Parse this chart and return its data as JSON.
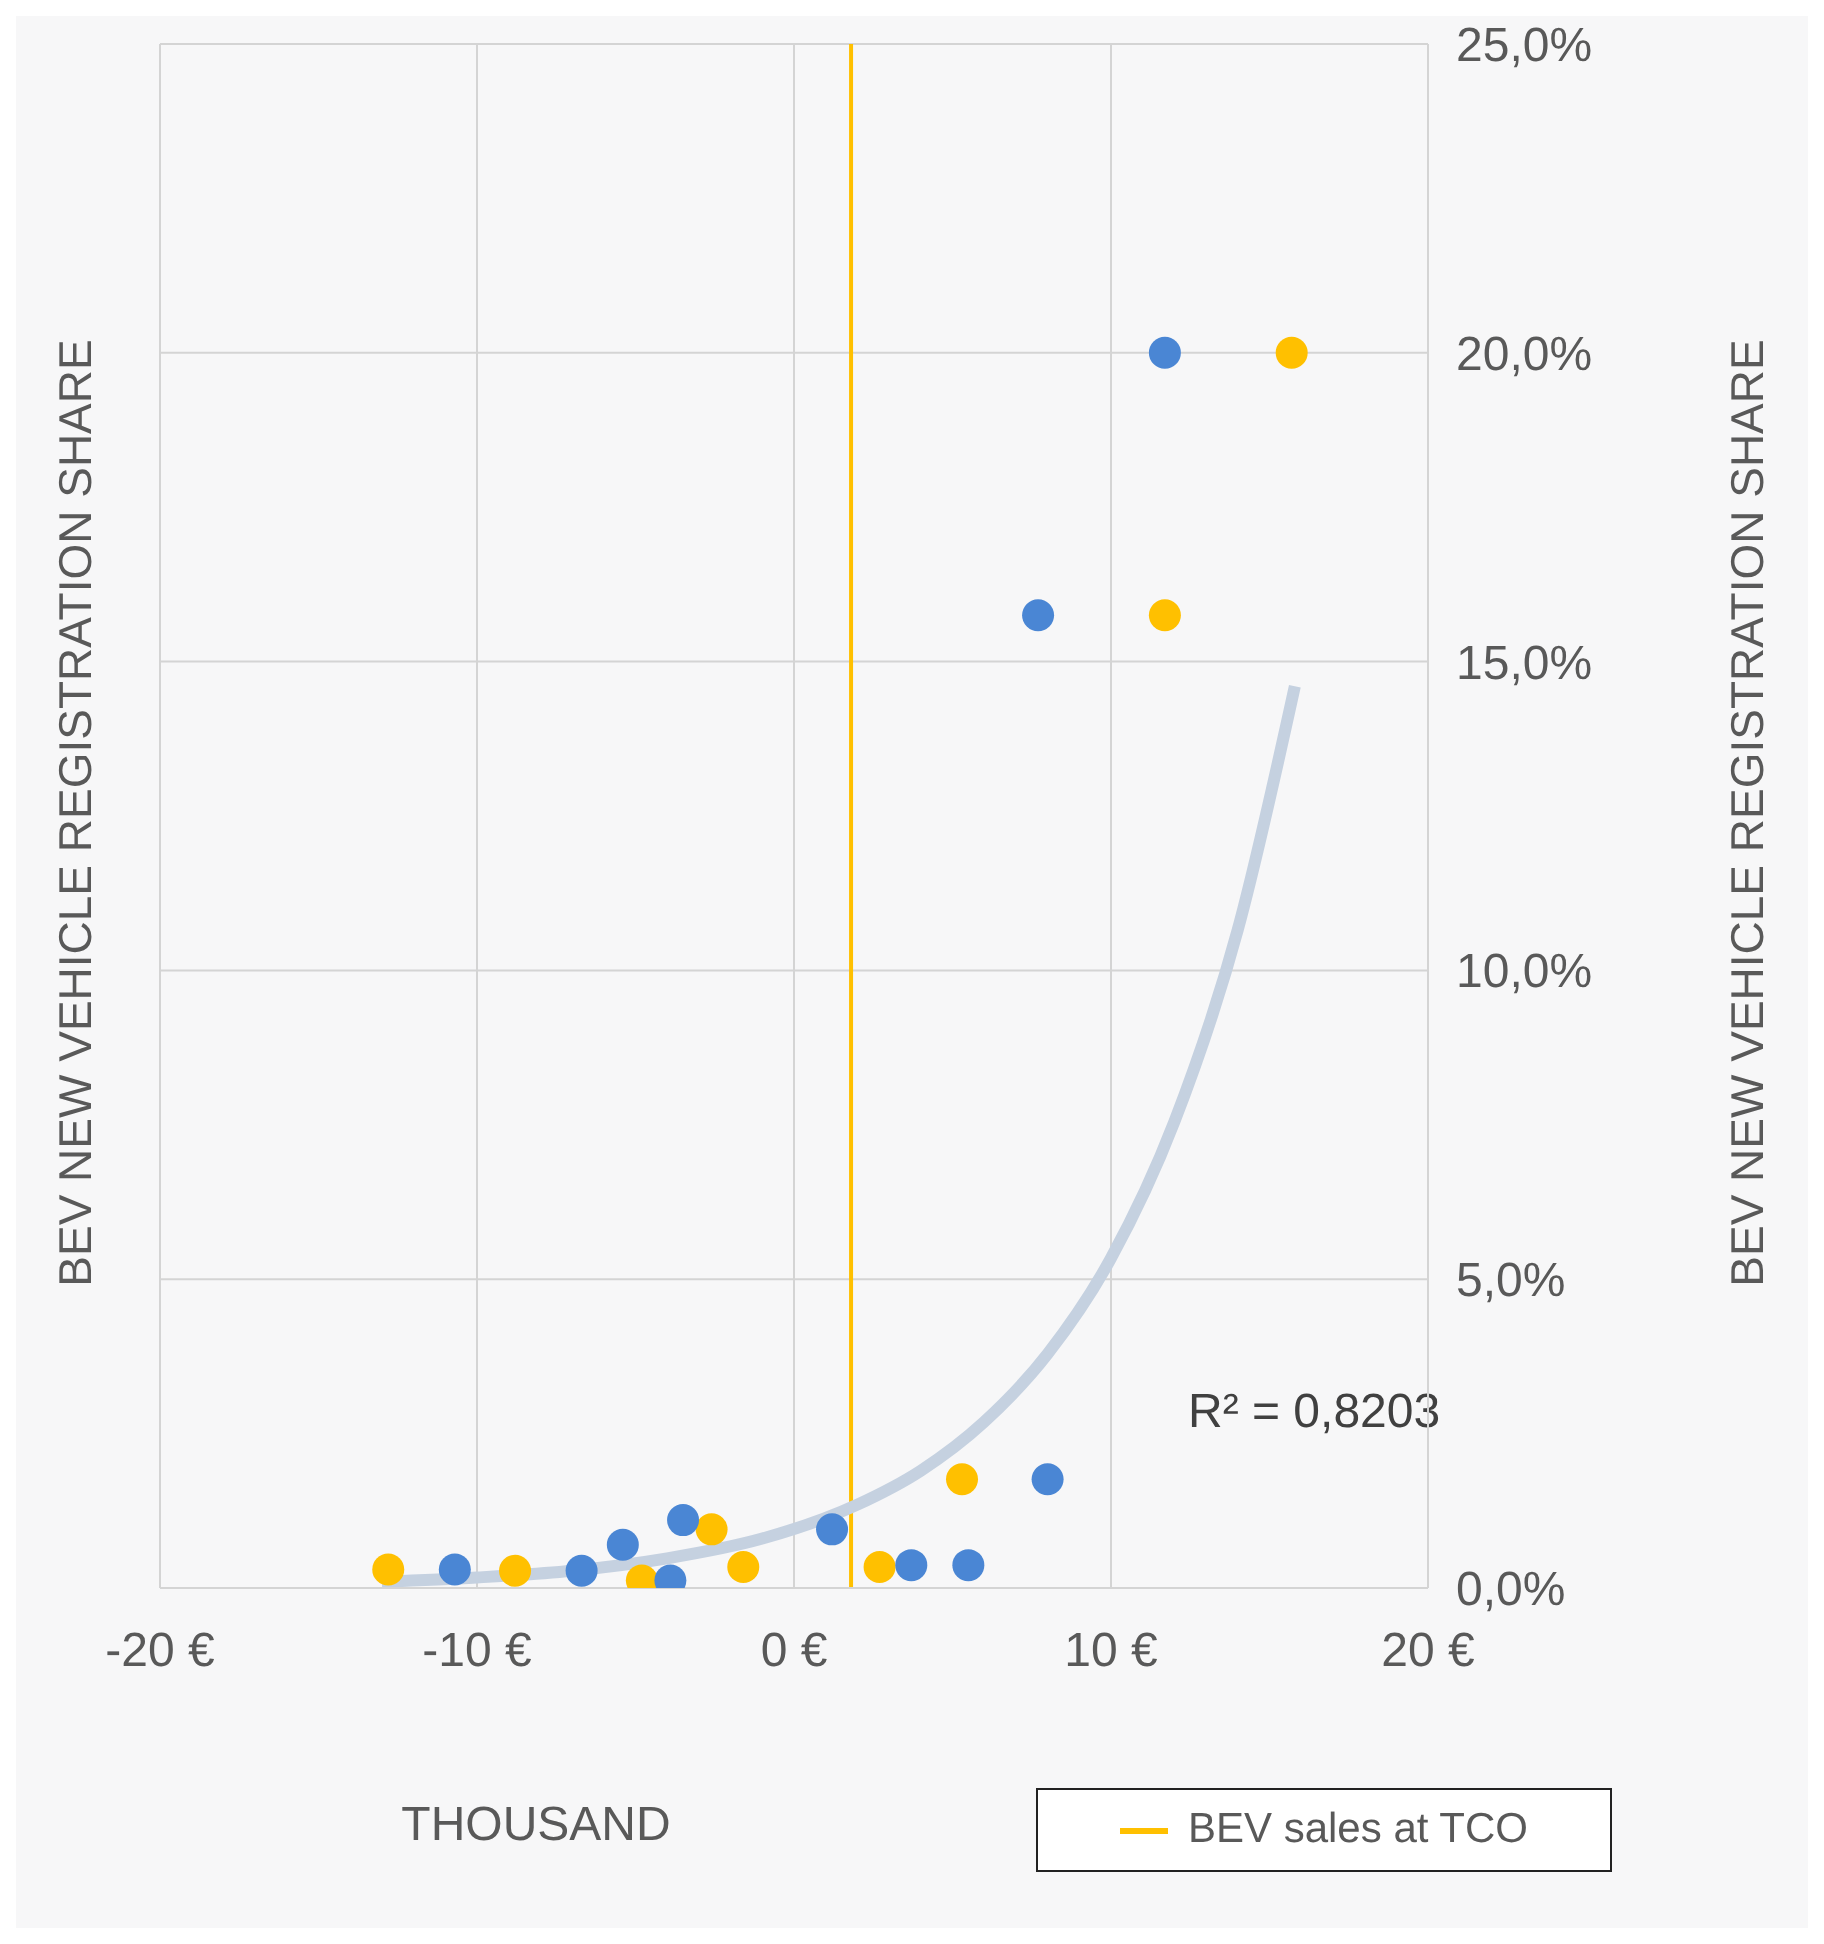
{
  "chart_data": {
    "type": "scatter",
    "xlabel": "THOUSAND",
    "ylabel": "BEV NEW VEHICLE REGISTRATION SHARE",
    "y2label": "BEV NEW VEHICLE REGISTRATION SHARE",
    "xlim": [
      -20,
      20
    ],
    "xticks": [
      {
        "value": -20,
        "label": "-20 €"
      },
      {
        "value": -10,
        "label": "-10 €"
      },
      {
        "value": 0,
        "label": "0 €"
      },
      {
        "value": 10,
        "label": "10 €"
      },
      {
        "value": 20,
        "label": "20 €"
      }
    ],
    "ylim": [
      0,
      25
    ],
    "yticks": [
      {
        "value": 0,
        "label": "0,0%"
      },
      {
        "value": 5,
        "label": "5,0%"
      },
      {
        "value": 10,
        "label": "10,0%"
      },
      {
        "value": 15,
        "label": "15,0%"
      },
      {
        "value": 20,
        "label": "20,0%"
      },
      {
        "value": 25,
        "label": "25,0%"
      }
    ],
    "grid": true,
    "marker": "circle",
    "legend": "bottom right",
    "series": [
      {
        "color": "#ffc000",
        "x": [
          -12.8,
          -8.8,
          -4.8,
          -2.6,
          -1.6,
          2.7,
          5.3,
          11.7,
          15.7
        ],
        "values": [
          0.3,
          0.28,
          0.12,
          0.95,
          0.34,
          0.34,
          1.76,
          15.75,
          20.0
        ]
      },
      {
        "color": "#4a86d4",
        "x": [
          -10.7,
          -6.7,
          -5.4,
          -3.9,
          -3.5,
          1.2,
          3.7,
          5.5,
          8.0,
          7.7,
          11.7
        ],
        "values": [
          0.3,
          0.28,
          0.7,
          0.12,
          1.1,
          0.95,
          0.37,
          0.37,
          1.76,
          15.75,
          20.0
        ]
      },
      {
        "type": "line",
        "color": "#c5d1e0",
        "marker": "none",
        "x": [
          -13,
          -10,
          -7,
          -4,
          -1,
          2,
          4,
          6,
          8,
          10,
          12,
          14,
          15.8
        ],
        "values": [
          0.1,
          0.17,
          0.28,
          0.48,
          0.8,
          1.35,
          1.9,
          2.69,
          3.79,
          5.34,
          7.55,
          10.66,
          14.6
        ]
      }
    ],
    "ref_lines": [
      {
        "axis": "x",
        "value": 1.8,
        "label": "BEV sales at TCO",
        "color": "#ffc000"
      }
    ],
    "annotations": [
      "R² = 0,8203"
    ]
  }
}
